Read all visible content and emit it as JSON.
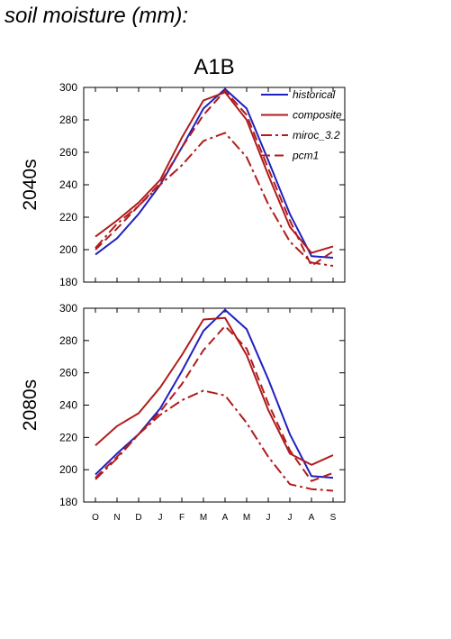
{
  "figure": {
    "title": "soil moisture (mm):"
  },
  "chart_data": {
    "type": "line",
    "title": "A1B",
    "categories": [
      "O",
      "N",
      "D",
      "J",
      "F",
      "M",
      "A",
      "M",
      "J",
      "J",
      "A",
      "S"
    ],
    "ylim": [
      180,
      300
    ],
    "yticks": [
      180,
      200,
      220,
      240,
      260,
      280,
      300
    ],
    "legend": {
      "placement": "top-right",
      "entries": [
        {
          "name": "historical",
          "color": "#2020c0",
          "dash": "solid"
        },
        {
          "name": "composite",
          "color": "#b01c1c",
          "dash": "solid"
        },
        {
          "name": "miroc_3.2",
          "color": "#b01c1c",
          "dash": "dashdot"
        },
        {
          "name": "pcm1",
          "color": "#b01c1c",
          "dash": "dashed"
        }
      ]
    },
    "panels": [
      {
        "label": "2040s",
        "series": [
          {
            "name": "historical",
            "color": "#2020c0",
            "dash": "solid",
            "values": [
              197,
              207,
              222,
              240,
              263,
              287,
              299,
              287,
              255,
              222,
              196,
              195
            ]
          },
          {
            "name": "composite",
            "color": "#b01c1c",
            "dash": "solid",
            "values": [
              208,
              218,
              229,
              243,
              269,
              292,
              297,
              280,
              246,
              214,
              198,
              202
            ]
          },
          {
            "name": "miroc_3.2",
            "color": "#b01c1c",
            "dash": "dashdot",
            "values": [
              201,
              216,
              227,
              240,
              252,
              267,
              272,
              257,
              228,
              205,
              192,
              190
            ]
          },
          {
            "name": "pcm1",
            "color": "#b01c1c",
            "dash": "dashed",
            "values": [
              200,
              213,
              227,
              241,
              263,
              283,
              298,
              283,
              250,
              218,
              190,
              199
            ]
          }
        ]
      },
      {
        "label": "2080s",
        "series": [
          {
            "name": "historical",
            "color": "#2020c0",
            "dash": "solid",
            "values": [
              197,
              210,
              222,
              238,
              261,
              286,
              299,
              287,
              256,
              222,
              196,
              195
            ]
          },
          {
            "name": "composite",
            "color": "#b01c1c",
            "dash": "solid",
            "values": [
              215,
              227,
              235,
              251,
              271,
              293,
              294,
              271,
              237,
              210,
              203,
              209
            ]
          },
          {
            "name": "miroc_3.2",
            "color": "#b01c1c",
            "dash": "dashdot",
            "values": [
              194,
              207,
              222,
              234,
              243,
              249,
              246,
              229,
              208,
              191,
              188,
              187
            ]
          },
          {
            "name": "pcm1",
            "color": "#b01c1c",
            "dash": "dashed",
            "values": [
              195,
              208,
              222,
              236,
              253,
              274,
              289,
              275,
              241,
              212,
              193,
              198
            ]
          }
        ]
      }
    ]
  }
}
